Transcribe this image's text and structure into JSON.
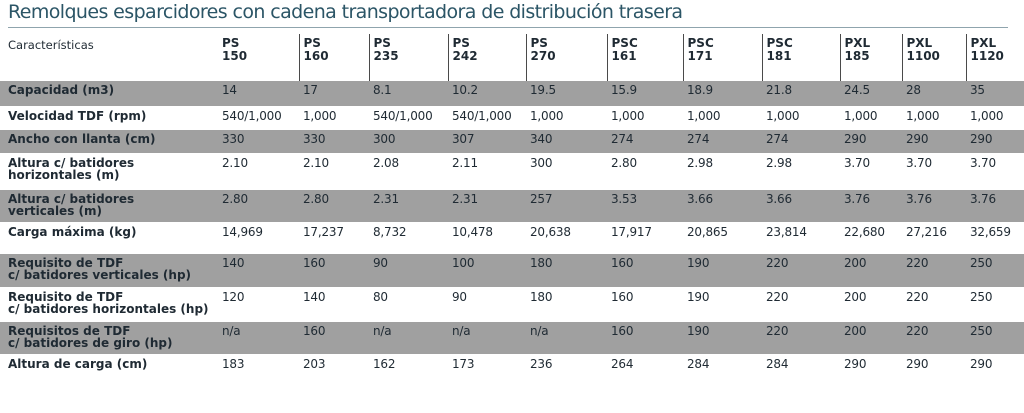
{
  "title": "Remolques esparcidores con cadena transportadora de distribución trasera",
  "header": {
    "characteristics": "Características",
    "models": [
      {
        "line1": "PS",
        "line2": "150"
      },
      {
        "line1": "PS",
        "line2": "160"
      },
      {
        "line1": "PS",
        "line2": "235"
      },
      {
        "line1": "PS",
        "line2": "242"
      },
      {
        "line1": "PS",
        "line2": "270"
      },
      {
        "line1": "PSC",
        "line2": "161"
      },
      {
        "line1": "PSC",
        "line2": "171"
      },
      {
        "line1": "PSC",
        "line2": "181"
      },
      {
        "line1": "PXL",
        "line2": "185"
      },
      {
        "line1": "PXL",
        "line2": "1100"
      },
      {
        "line1": "PXL",
        "line2": "1120"
      }
    ]
  },
  "rows": [
    {
      "label": [
        "Capacidad (m3)"
      ],
      "values": [
        "14",
        "17",
        "8.1",
        "10.2",
        "19.5",
        "15.9",
        "18.9",
        "21.8",
        "24.5",
        "28",
        "35"
      ]
    },
    {
      "label": [
        "Velocidad TDF (rpm)"
      ],
      "values": [
        "540/1,000",
        "1,000",
        "540/1,000",
        "540/1,000",
        "1,000",
        "1,000",
        "1,000",
        "1,000",
        "1,000",
        "1,000",
        "1,000"
      ]
    },
    {
      "label": [
        "Ancho con llanta (cm)"
      ],
      "values": [
        "330",
        "330",
        "300",
        "307",
        "340",
        "274",
        "274",
        "274",
        "290",
        "290",
        "290"
      ]
    },
    {
      "label": [
        "Altura c/ batidores",
        "horizontales (m)"
      ],
      "values": [
        "2.10",
        "2.10",
        "2.08",
        "2.11",
        "300",
        "2.80",
        "2.98",
        "2.98",
        "3.70",
        "3.70",
        "3.70"
      ]
    },
    {
      "label": [
        "Altura c/ batidores",
        "verticales (m)"
      ],
      "values": [
        "2.80",
        "2.80",
        "2.31",
        "2.31",
        "257",
        "3.53",
        "3.66",
        "3.66",
        "3.76",
        "3.76",
        "3.76"
      ]
    },
    {
      "label": [
        "Carga máxima (kg)"
      ],
      "values": [
        "14,969",
        "17,237",
        "8,732",
        "10,478",
        "20,638",
        "17,917",
        "20,865",
        "23,814",
        "22,680",
        "27,216",
        "32,659"
      ]
    },
    {
      "label": [
        "Requisito de TDF",
        "c/ batidores verticales (hp)"
      ],
      "values": [
        "140",
        "160",
        "90",
        "100",
        "180",
        "160",
        "190",
        "220",
        "200",
        "220",
        "250"
      ]
    },
    {
      "label": [
        "Requisito de TDF",
        "c/ batidores horizontales (hp)"
      ],
      "values": [
        "120",
        "140",
        "80",
        "90",
        "180",
        "160",
        "190",
        "220",
        "200",
        "220",
        "250"
      ]
    },
    {
      "label": [
        "Requisitos de TDF",
        "c/ batidores de giro (hp)"
      ],
      "values": [
        "n/a",
        "160",
        "n/a",
        "n/a",
        "n/a",
        "160",
        "190",
        "220",
        "200",
        "220",
        "250"
      ]
    },
    {
      "label": [
        "Altura de carga (cm)"
      ],
      "values": [
        "183",
        "203",
        "162",
        "173",
        "236",
        "264",
        "284",
        "284",
        "290",
        "290",
        "290"
      ]
    }
  ]
}
